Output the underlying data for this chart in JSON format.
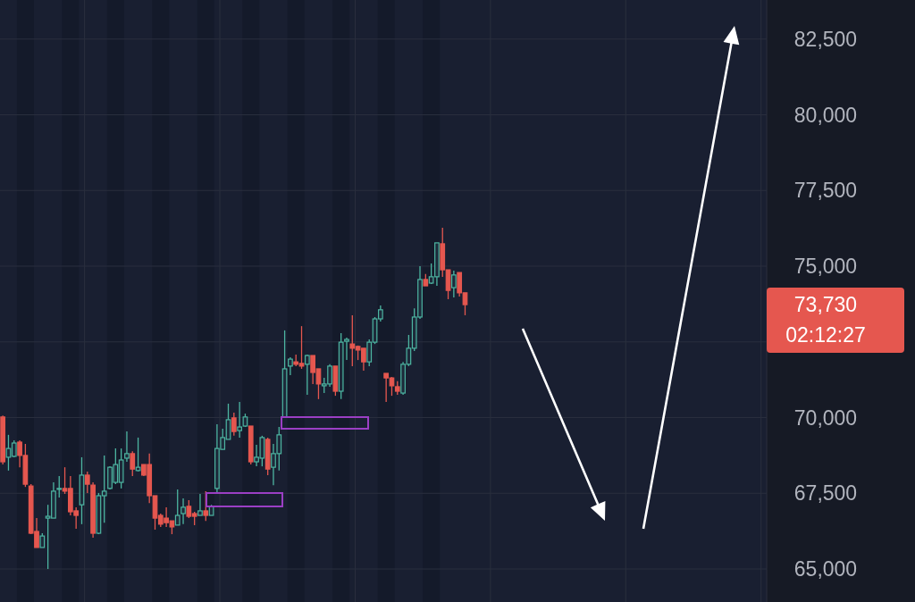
{
  "chart_data": {
    "type": "candlestick",
    "categories": [
      null,
      null,
      null,
      null,
      null,
      null,
      null,
      null,
      null,
      null,
      null,
      null,
      null,
      null,
      null,
      null,
      null,
      null,
      null,
      null,
      null,
      null,
      null,
      null,
      null,
      null,
      null,
      null,
      null,
      null,
      null,
      null,
      null,
      null,
      null,
      null,
      null,
      null,
      null,
      null,
      null,
      null,
      null,
      null,
      null,
      null,
      null,
      null,
      null,
      null,
      null,
      null,
      null,
      null,
      null,
      null,
      null,
      null,
      null,
      null,
      null,
      null,
      null,
      null,
      null,
      null,
      null,
      null,
      null,
      null,
      null,
      null,
      null,
      null,
      null,
      null,
      null,
      null,
      null,
      null,
      null,
      null,
      null,
      null,
      null,
      null,
      null,
      null,
      null,
      null,
      null,
      null,
      null,
      null,
      null,
      null,
      null,
      null,
      null,
      null,
      null,
      null,
      null,
      null,
      null,
      null,
      null,
      null,
      null,
      null,
      null,
      null,
      null,
      null,
      null,
      null,
      null,
      null,
      null,
      null,
      null,
      null,
      null,
      null,
      null,
      null,
      null,
      null,
      null,
      null,
      null,
      null,
      null,
      null,
      null,
      null
    ],
    "ohlc": [
      [
        70020,
        70070,
        68450,
        68540
      ],
      [
        68690,
        69430,
        68250,
        68980
      ],
      [
        68720,
        69250,
        68690,
        69160
      ],
      [
        69190,
        69250,
        68360,
        68750
      ],
      [
        68750,
        69130,
        67710,
        67800
      ],
      [
        67740,
        67800,
        66150,
        66180
      ],
      [
        66240,
        66680,
        65710,
        65710
      ],
      [
        65710,
        66180,
        65710,
        66090
      ],
      [
        66680,
        67120,
        65000,
        66740
      ],
      [
        66680,
        67860,
        66680,
        67570
      ],
      [
        67630,
        68070,
        67360,
        67660
      ],
      [
        67660,
        68360,
        67480,
        67570
      ],
      [
        67660,
        68070,
        66770,
        66890
      ],
      [
        66920,
        67040,
        66330,
        66770
      ],
      [
        67120,
        68690,
        66480,
        68100
      ],
      [
        68100,
        68220,
        67510,
        67800
      ],
      [
        67770,
        67860,
        66030,
        66180
      ],
      [
        66180,
        67510,
        66150,
        67420
      ],
      [
        67420,
        68750,
        66530,
        67570
      ],
      [
        67660,
        68390,
        67630,
        68360
      ],
      [
        67860,
        68980,
        67800,
        68450
      ],
      [
        67860,
        68980,
        67660,
        68600
      ],
      [
        68660,
        69540,
        68540,
        68810
      ],
      [
        68810,
        68890,
        68070,
        68300
      ],
      [
        68250,
        69340,
        68220,
        68360
      ],
      [
        68450,
        68450,
        68070,
        68100
      ],
      [
        68450,
        68810,
        67180,
        67420
      ],
      [
        67420,
        67420,
        66300,
        66680
      ],
      [
        66770,
        66830,
        66390,
        66480
      ],
      [
        66680,
        67040,
        66390,
        66530
      ],
      [
        66590,
        66590,
        66150,
        66390
      ],
      [
        66450,
        67630,
        66450,
        66770
      ],
      [
        66830,
        67330,
        66480,
        67040
      ],
      [
        67070,
        67270,
        66680,
        66740
      ],
      [
        66830,
        66890,
        66450,
        66740
      ],
      [
        66770,
        67480,
        66770,
        66920
      ],
      [
        66920,
        67570,
        66590,
        66770
      ],
      [
        66770,
        67120,
        66770,
        67070
      ],
      [
        67660,
        69780,
        67510,
        68980
      ],
      [
        68950,
        69630,
        68950,
        69340
      ],
      [
        69280,
        70460,
        69280,
        69930
      ],
      [
        69990,
        70160,
        69400,
        69540
      ],
      [
        69570,
        70520,
        69340,
        69690
      ],
      [
        69720,
        70130,
        69690,
        70020
      ],
      [
        69720,
        69720,
        68450,
        68540
      ],
      [
        68540,
        69100,
        68390,
        68690
      ],
      [
        68660,
        69400,
        68390,
        69340
      ],
      [
        69280,
        69340,
        68100,
        68300
      ],
      [
        68360,
        69130,
        67770,
        68810
      ],
      [
        68810,
        69690,
        68250,
        69430
      ],
      [
        70020,
        72880,
        70020,
        71610
      ],
      [
        71700,
        71990,
        71400,
        71930
      ],
      [
        71840,
        72080,
        71700,
        71760
      ],
      [
        71790,
        73020,
        71610,
        71700
      ],
      [
        71760,
        72080,
        70750,
        72050
      ],
      [
        72050,
        72050,
        71110,
        71490
      ],
      [
        71610,
        71610,
        70610,
        71110
      ],
      [
        71050,
        71310,
        70810,
        71110
      ],
      [
        71110,
        71760,
        71020,
        71700
      ],
      [
        71700,
        71700,
        70720,
        70870
      ],
      [
        70870,
        72790,
        70610,
        72490
      ],
      [
        72520,
        72640,
        71900,
        72580
      ],
      [
        72430,
        73380,
        71700,
        72290
      ],
      [
        72350,
        72380,
        71900,
        72230
      ],
      [
        72290,
        72290,
        71550,
        71840
      ],
      [
        71840,
        72580,
        71700,
        72490
      ],
      [
        72490,
        73320,
        72430,
        73260
      ],
      [
        73260,
        73700,
        73170,
        73560
      ],
      [
        71460,
        71460,
        70520,
        71310
      ],
      [
        71310,
        71340,
        70720,
        71050
      ],
      [
        71020,
        71200,
        70750,
        70870
      ],
      [
        70810,
        71840,
        70750,
        71760
      ],
      [
        71760,
        72730,
        71700,
        72290
      ],
      [
        72290,
        73610,
        72200,
        73320
      ],
      [
        73320,
        75000,
        73260,
        74560
      ],
      [
        74560,
        74740,
        74350,
        74350
      ],
      [
        74440,
        75090,
        74410,
        74650
      ],
      [
        74650,
        75770,
        74350,
        75770
      ],
      [
        75740,
        76270,
        74650,
        74880
      ],
      [
        74880,
        74880,
        73910,
        74200
      ],
      [
        74290,
        74850,
        73970,
        74710
      ],
      [
        74790,
        74790,
        74000,
        74120
      ],
      [
        74120,
        74120,
        73380,
        73730
      ],
      null,
      null,
      null,
      null,
      null,
      null,
      null,
      null,
      null,
      null,
      null,
      null,
      null,
      null,
      null,
      null,
      null,
      null,
      null,
      null,
      null,
      null,
      null,
      null,
      null,
      null,
      null,
      null,
      null,
      null,
      null,
      null,
      null,
      null,
      null,
      null,
      null,
      null,
      null,
      null,
      null,
      null,
      null,
      null,
      null,
      null,
      null,
      null,
      null,
      null,
      null,
      null,
      null
    ],
    "ylim": [
      63910,
      83790
    ],
    "yticks": [
      {
        "value": 65000,
        "label": "65,000"
      },
      {
        "value": 67500,
        "label": "67,500"
      },
      {
        "value": 70000,
        "label": "70,000"
      },
      {
        "value": 72500,
        "label": null
      },
      {
        "value": 75000,
        "label": "75,000"
      },
      {
        "value": 77500,
        "label": "77,500"
      },
      {
        "value": 80000,
        "label": "80,000"
      },
      {
        "value": 82500,
        "label": "82,500"
      }
    ],
    "grid": true,
    "annotations": [
      "73,730",
      "02:12:27"
    ]
  }
}
